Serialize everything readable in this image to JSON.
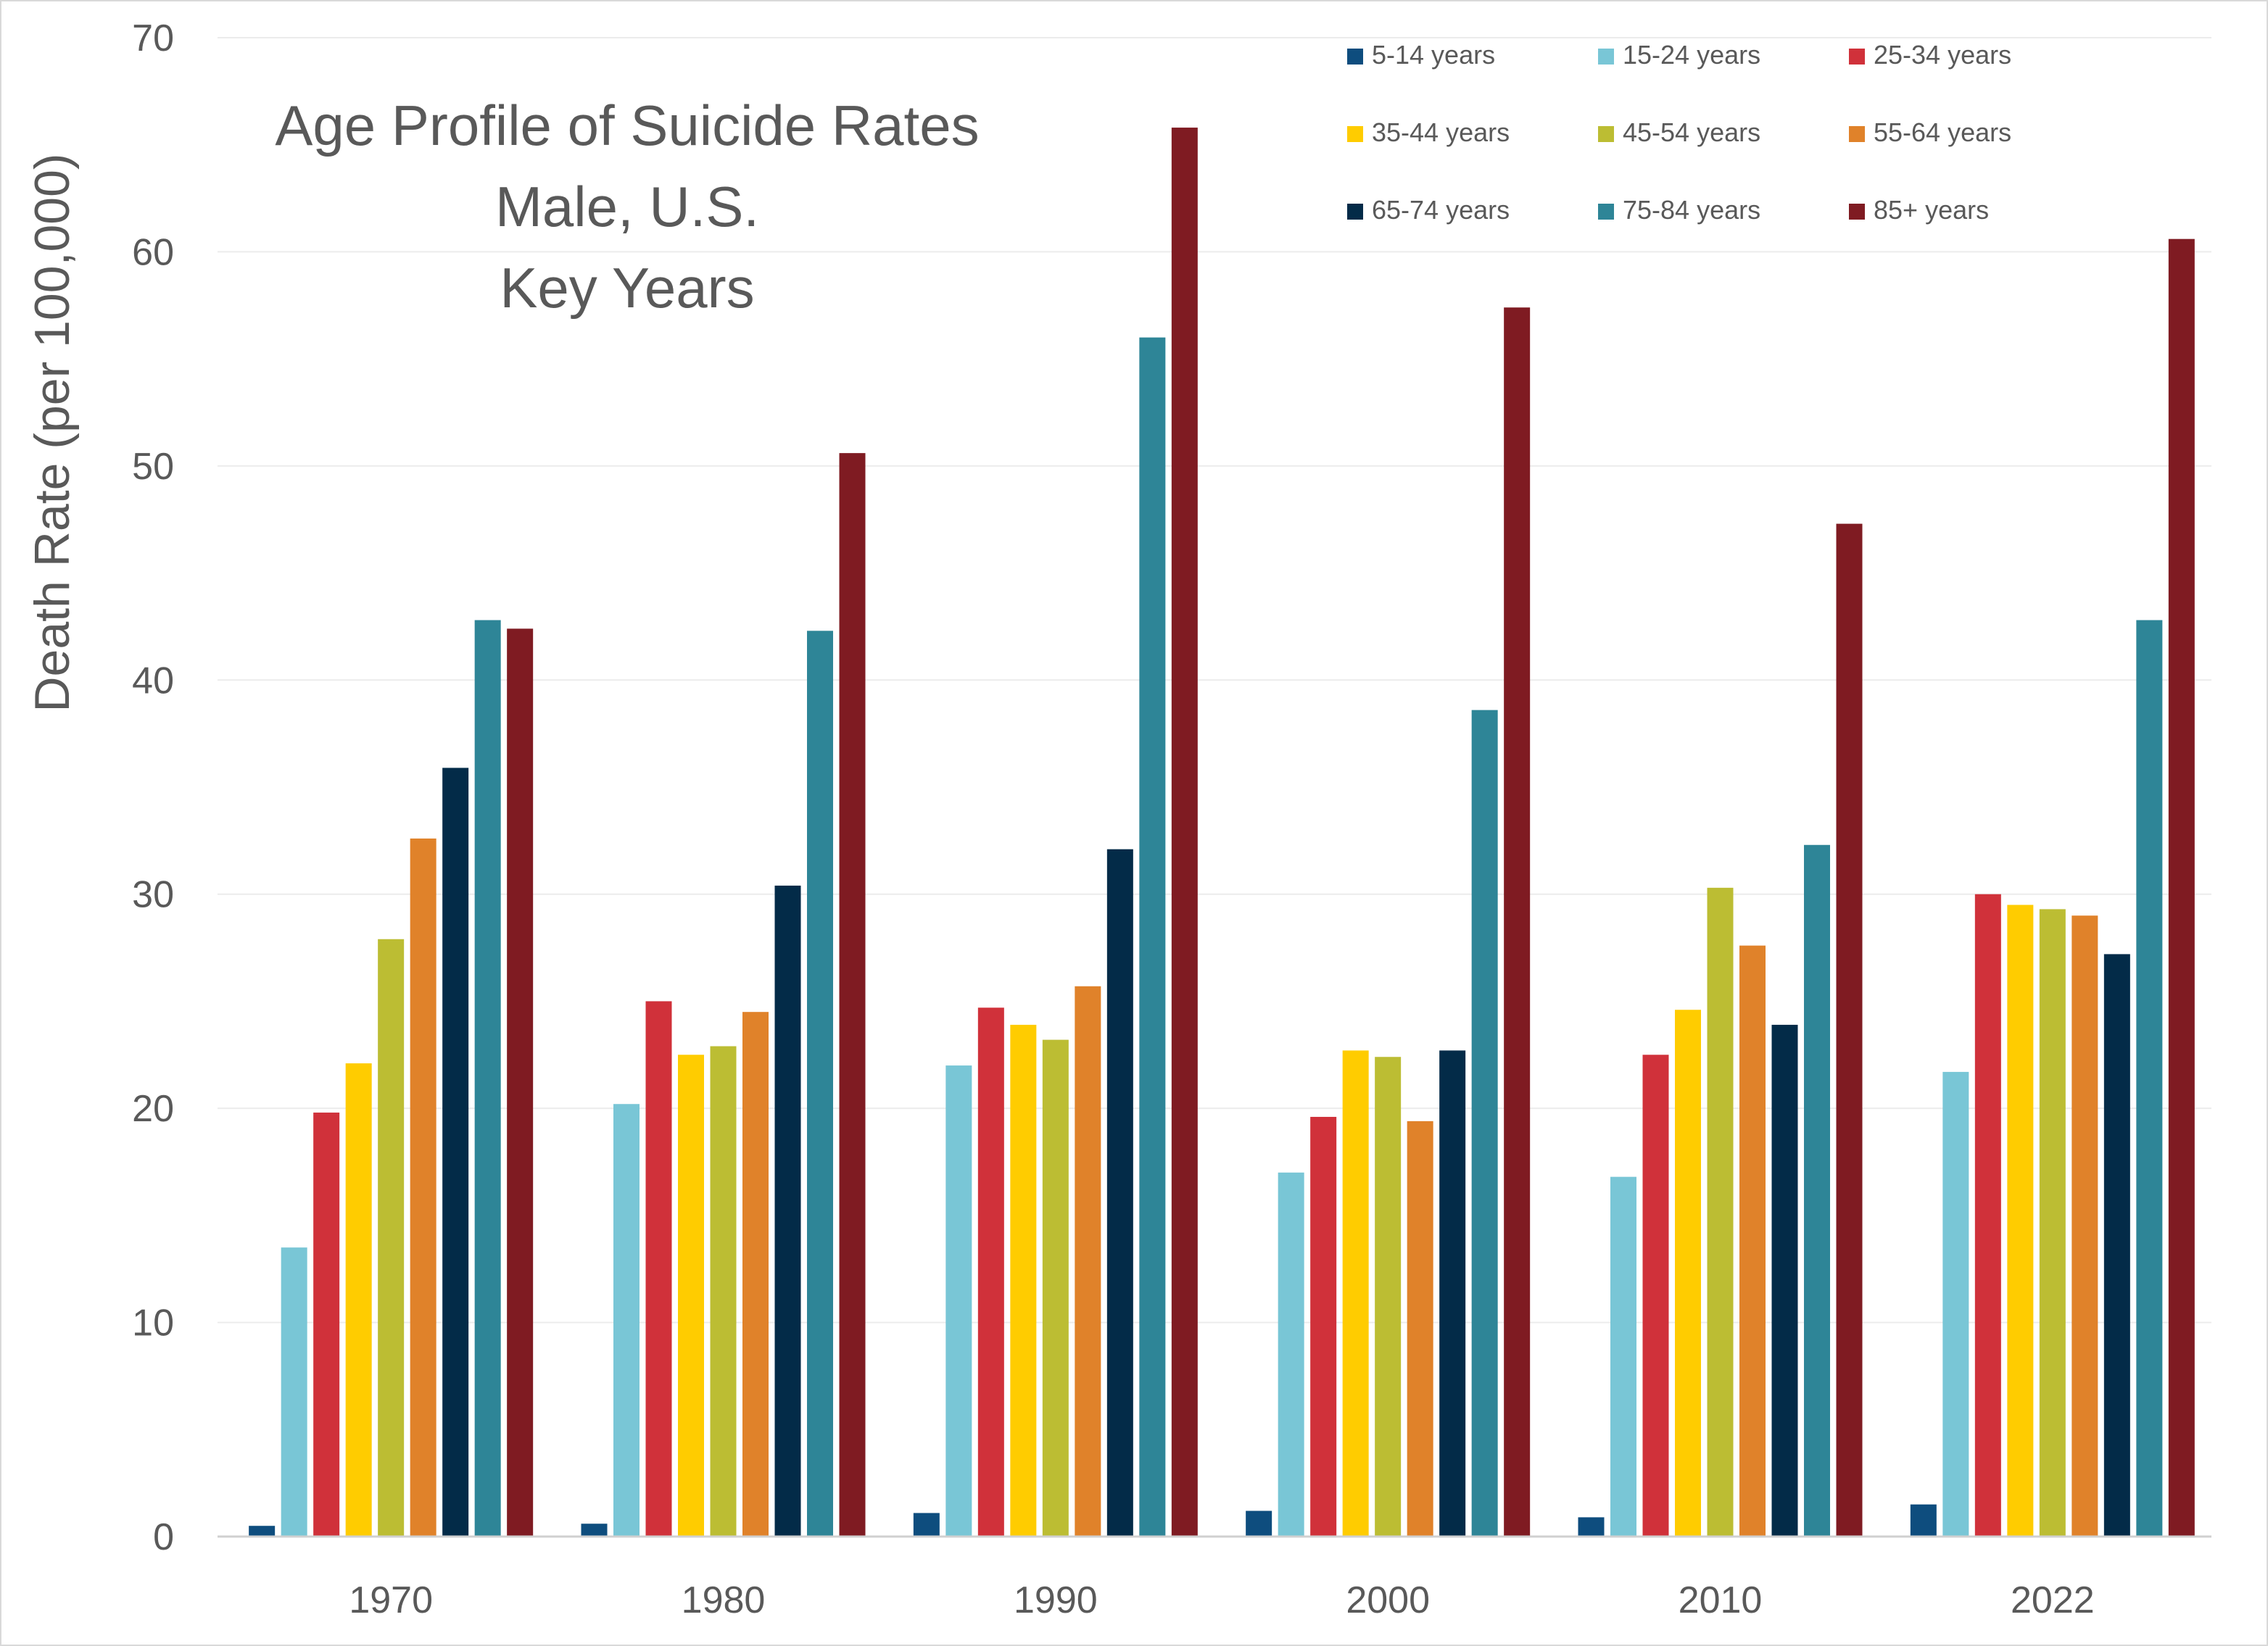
{
  "chart_data": {
    "type": "bar",
    "title_lines": [
      "Age Profile of Suicide Rates",
      "Male, U.S.",
      "Key Years"
    ],
    "xlabel": "",
    "ylabel": "Death Rate (per 100,000)",
    "ylim": [
      0,
      70
    ],
    "yticks": [
      0,
      10,
      20,
      30,
      40,
      50,
      60,
      70
    ],
    "grid": true,
    "legend_position": "top-right",
    "categories": [
      "1970",
      "1980",
      "1990",
      "2000",
      "2010",
      "2022"
    ],
    "series": [
      {
        "name": "5-14 years",
        "color": "#0e4d7e",
        "values": [
          0.5,
          0.6,
          1.1,
          1.2,
          0.9,
          1.5
        ]
      },
      {
        "name": "15-24 years",
        "color": "#79c6d6",
        "values": [
          13.5,
          20.2,
          22.0,
          17.0,
          16.8,
          21.7
        ]
      },
      {
        "name": "25-34 years",
        "color": "#d0313a",
        "values": [
          19.8,
          25.0,
          24.7,
          19.6,
          22.5,
          30.0
        ]
      },
      {
        "name": "35-44 years",
        "color": "#ffcc00",
        "values": [
          22.1,
          22.5,
          23.9,
          22.7,
          24.6,
          29.5
        ]
      },
      {
        "name": "45-54 years",
        "color": "#bcbd33",
        "values": [
          27.9,
          22.9,
          23.2,
          22.4,
          30.3,
          29.3
        ]
      },
      {
        "name": "55-64 years",
        "color": "#e0822a",
        "values": [
          32.6,
          24.5,
          25.7,
          19.4,
          27.6,
          29.0
        ]
      },
      {
        "name": "65-74 years",
        "color": "#032b48",
        "values": [
          35.9,
          30.4,
          32.1,
          22.7,
          23.9,
          27.2
        ]
      },
      {
        "name": "75-84 years",
        "color": "#2e8597",
        "values": [
          42.8,
          42.3,
          56.0,
          38.6,
          32.3,
          42.8
        ]
      },
      {
        "name": "85+ years",
        "color": "#7f1b22",
        "values": [
          42.4,
          50.6,
          65.8,
          57.4,
          47.3,
          60.6
        ]
      }
    ]
  }
}
